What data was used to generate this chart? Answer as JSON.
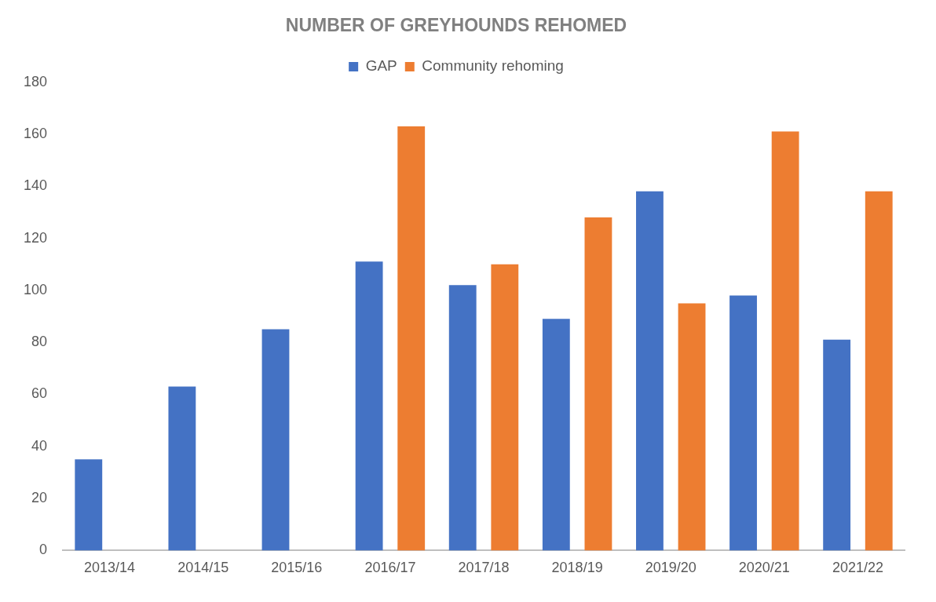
{
  "chart_data": {
    "type": "bar",
    "title": "NUMBER OF GREYHOUNDS REHOMED",
    "categories": [
      "2013/14",
      "2014/15",
      "2015/16",
      "2016/17",
      "2017/18",
      "2018/19",
      "2019/20",
      "2020/21",
      "2021/22"
    ],
    "series": [
      {
        "name": "GAP",
        "color": "#4472c4",
        "values": [
          35,
          63,
          85,
          111,
          102,
          89,
          138,
          98,
          81
        ]
      },
      {
        "name": "Community rehoming",
        "color": "#ed7d31",
        "values": [
          null,
          null,
          null,
          163,
          110,
          128,
          95,
          161,
          138
        ]
      }
    ],
    "ylim": [
      0,
      180
    ],
    "yticks": [
      0,
      20,
      40,
      60,
      80,
      100,
      120,
      140,
      160,
      180
    ],
    "grid": false,
    "legend": "top"
  }
}
